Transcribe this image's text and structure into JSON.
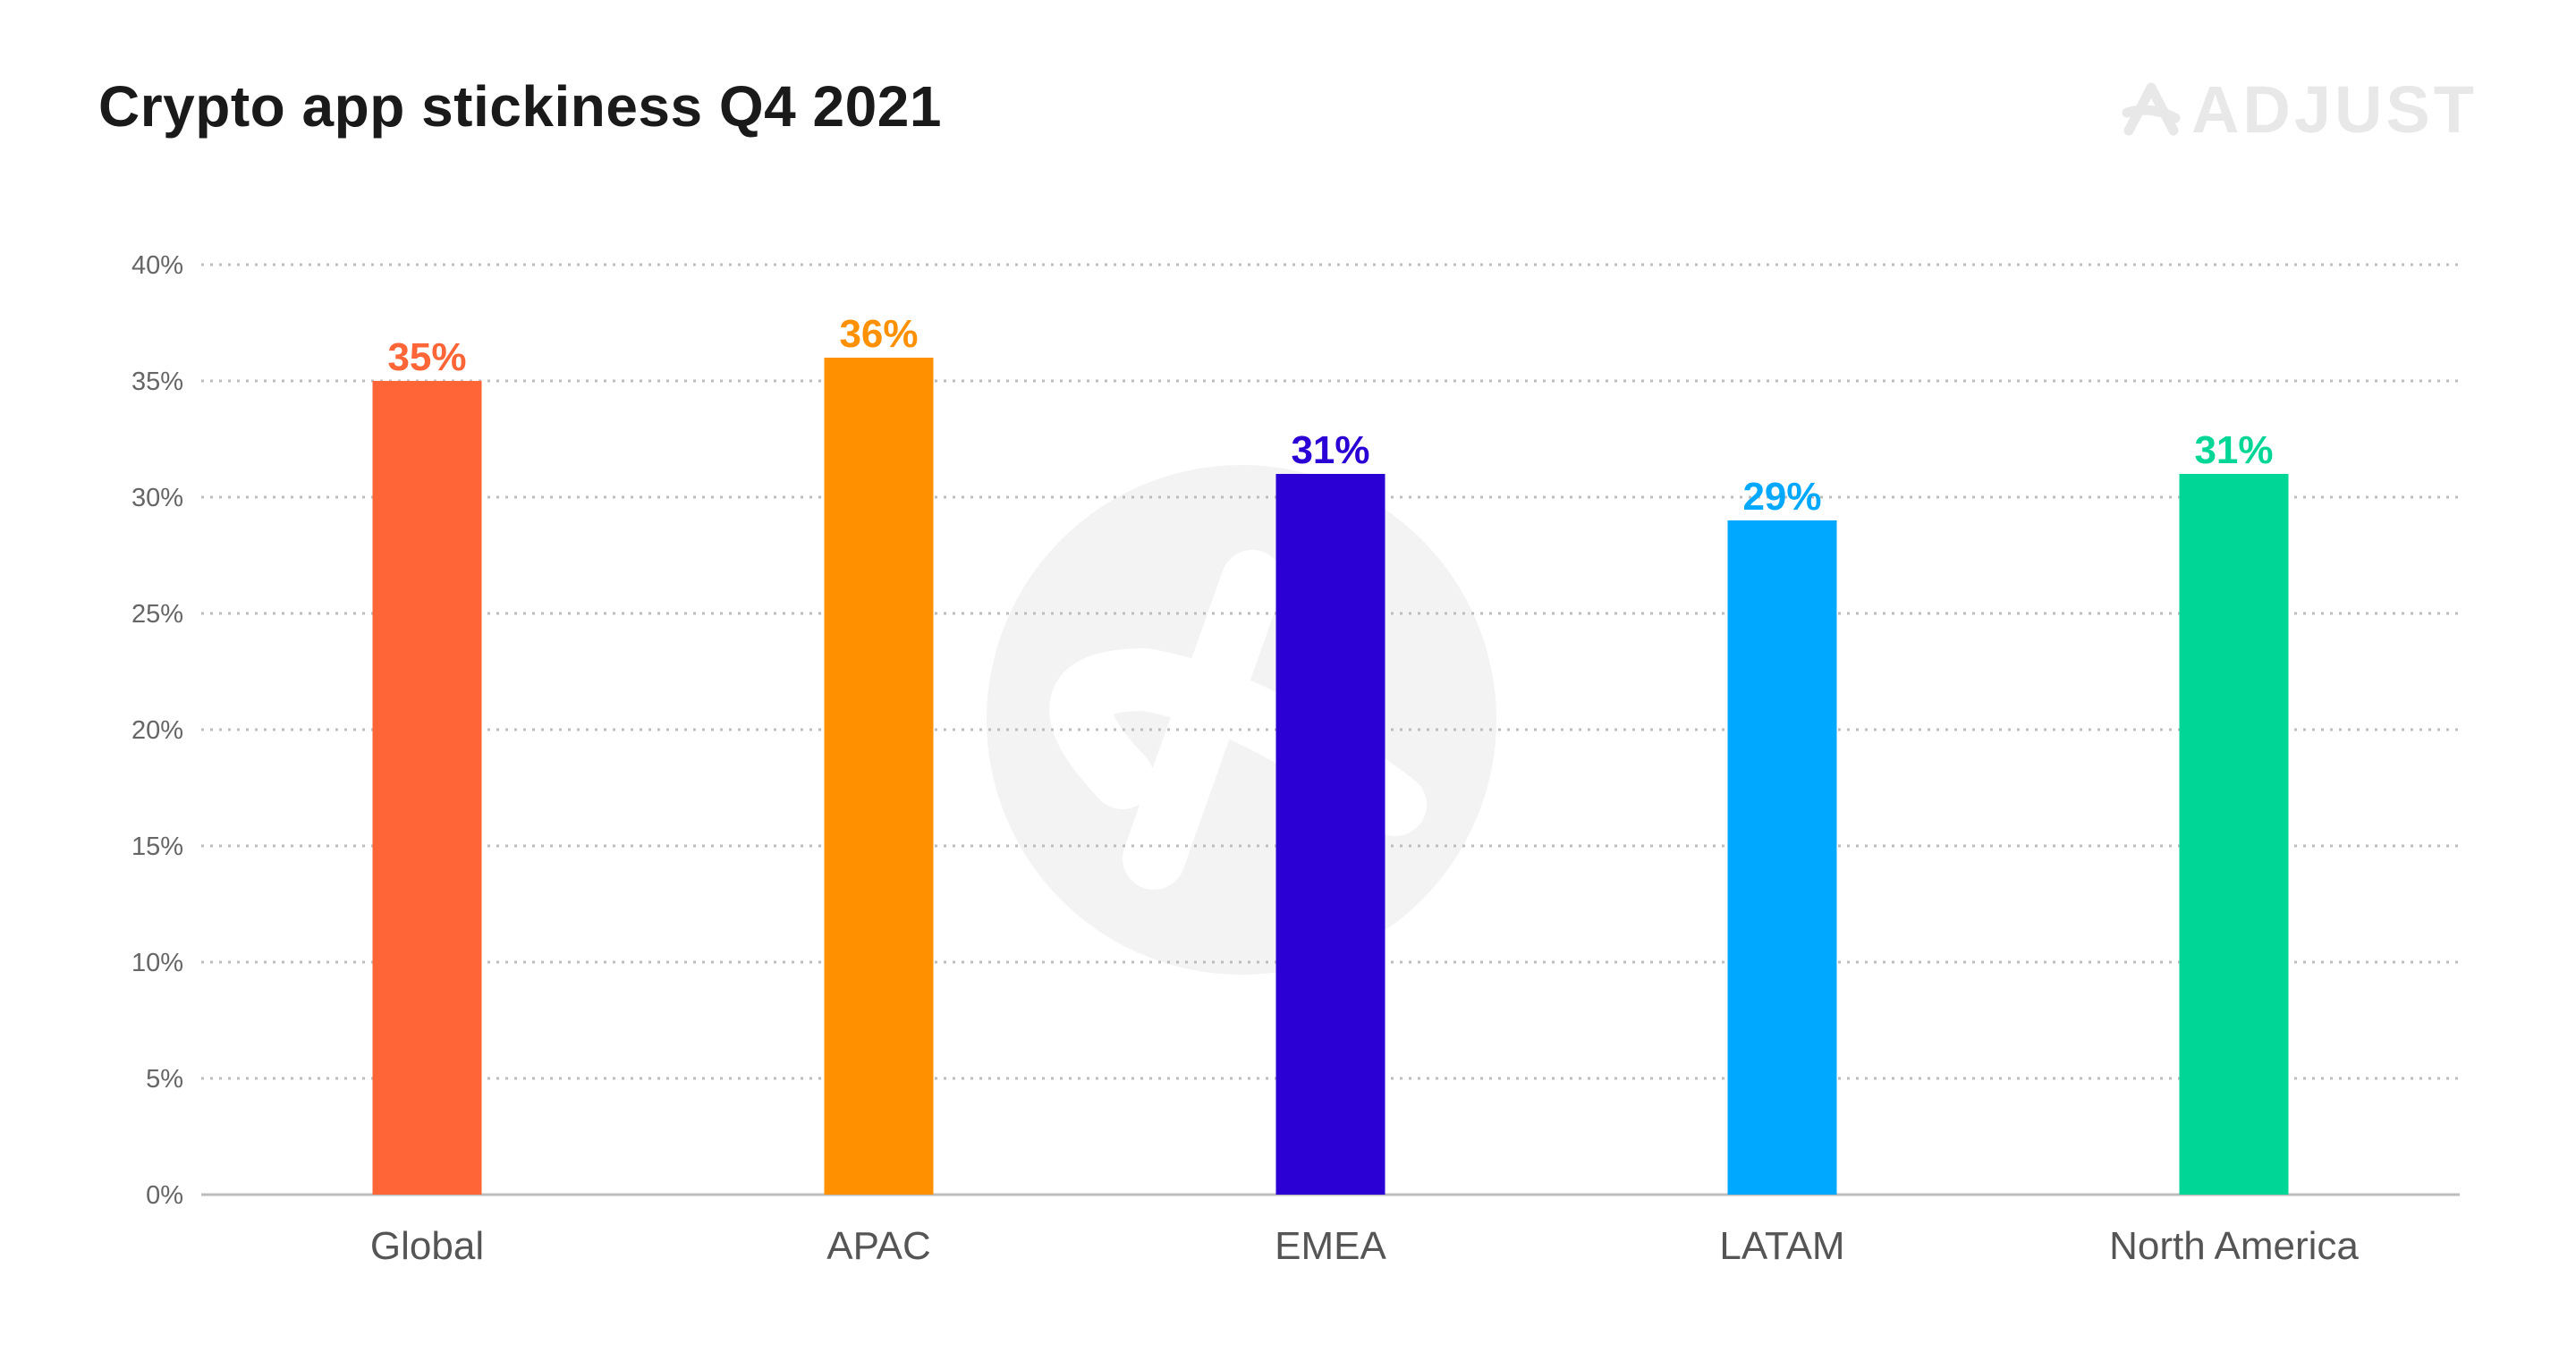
{
  "header": {
    "title": "Crypto app stickiness Q4 2021",
    "logo_text": "ADJUST",
    "logo_icon": "adjust-logo-icon"
  },
  "colors": {
    "gridline": "#bdbdbd",
    "axis": "#bdbdbd",
    "watermark": "#f3f3f3",
    "logo": "#e8e8e8"
  },
  "chart_data": {
    "type": "bar",
    "title": "Crypto app stickiness Q4 2021",
    "xlabel": "",
    "ylabel": "",
    "categories": [
      "Global",
      "APAC",
      "EMEA",
      "LATAM",
      "North America"
    ],
    "values": [
      35,
      36,
      31,
      29,
      31
    ],
    "value_labels": [
      "35%",
      "36%",
      "31%",
      "29%",
      "31%"
    ],
    "bar_colors": [
      "#ff6536",
      "#ff9000",
      "#2a00d4",
      "#00a8ff",
      "#00d696"
    ],
    "ylim": [
      0,
      40
    ],
    "yticks": [
      0,
      5,
      10,
      15,
      20,
      25,
      30,
      35,
      40
    ],
    "ytick_labels": [
      "0%",
      "5%",
      "10%",
      "15%",
      "20%",
      "25%",
      "30%",
      "35%",
      "40%"
    ],
    "grid": true,
    "legend": "none"
  }
}
